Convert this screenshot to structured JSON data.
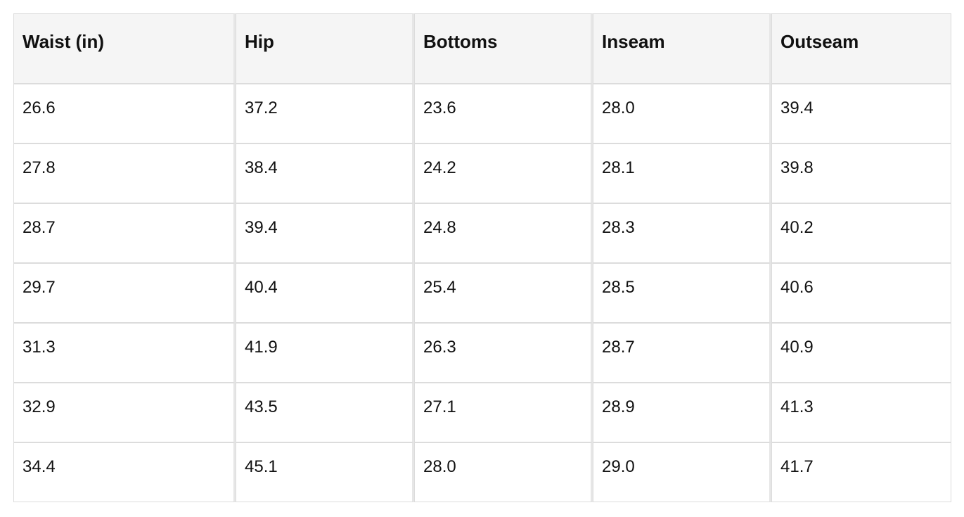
{
  "table": {
    "headers": [
      "Waist (in)",
      "Hip",
      "Bottoms",
      "Inseam",
      "Outseam"
    ],
    "rows": [
      [
        "26.6",
        "37.2",
        "23.6",
        "28.0",
        "39.4"
      ],
      [
        "27.8",
        "38.4",
        "24.2",
        "28.1",
        "39.8"
      ],
      [
        "28.7",
        "39.4",
        "24.8",
        "28.3",
        "40.2"
      ],
      [
        "29.7",
        "40.4",
        "25.4",
        "28.5",
        "40.6"
      ],
      [
        "31.3",
        "41.9",
        "26.3",
        "28.7",
        "40.9"
      ],
      [
        "32.9",
        "43.5",
        "27.1",
        "28.9",
        "41.3"
      ],
      [
        "34.4",
        "45.1",
        "28.0",
        "29.0",
        "41.7"
      ]
    ]
  },
  "colors": {
    "header_background": "#f5f5f5",
    "border": "#dcdcdc",
    "text": "#111111"
  }
}
